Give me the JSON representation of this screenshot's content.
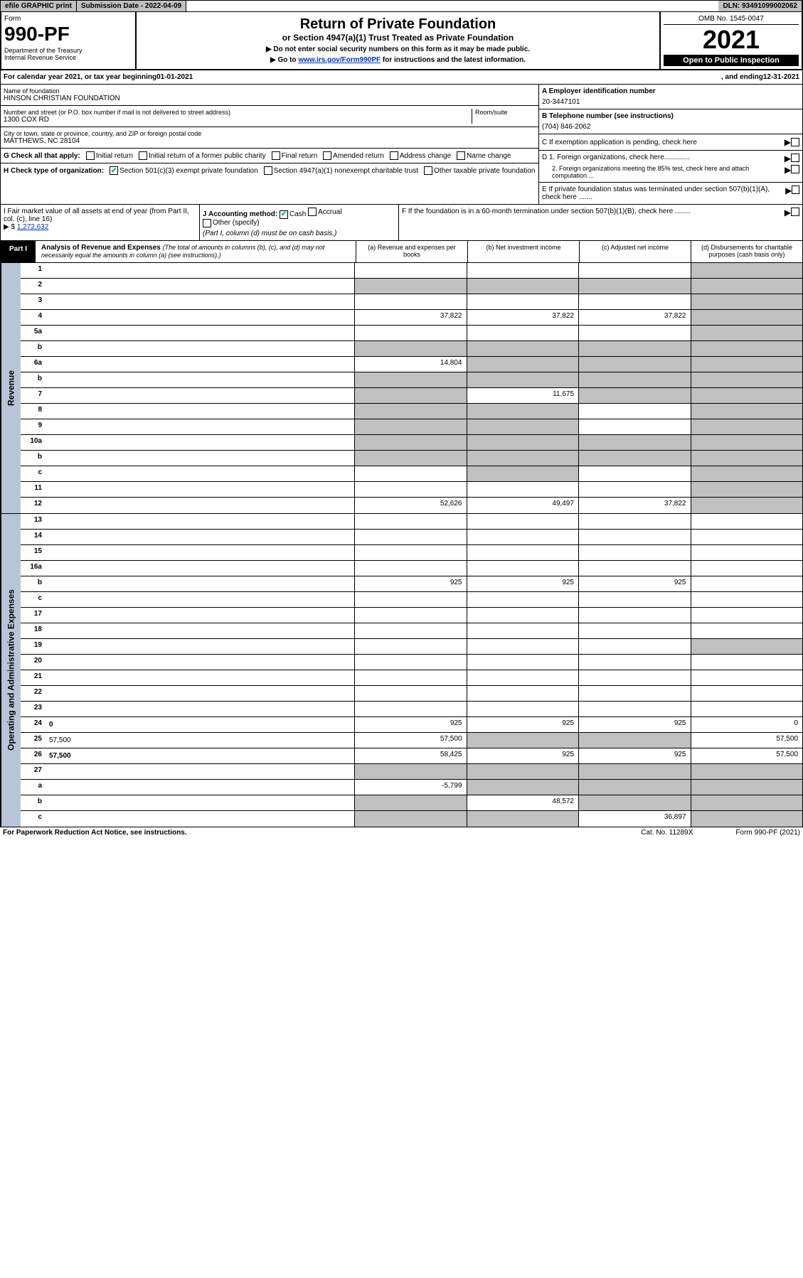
{
  "top": {
    "efile": "efile GRAPHIC print",
    "subdate_label": "Submission Date - ",
    "subdate": "2022-04-09",
    "dln_label": "DLN: ",
    "dln": "93491099002062"
  },
  "hdr": {
    "form_label": "Form",
    "form_no": "990-PF",
    "dept": "Department of the Treasury\nInternal Revenue Service",
    "title": "Return of Private Foundation",
    "subtitle": "or Section 4947(a)(1) Trust Treated as Private Foundation",
    "note1": "▶ Do not enter social security numbers on this form as it may be made public.",
    "note2_prefix": "▶ Go to ",
    "note2_link": "www.irs.gov/Form990PF",
    "note2_suffix": " for instructions and the latest information.",
    "omb": "OMB No. 1545-0047",
    "year": "2021",
    "open": "Open to Public Inspection"
  },
  "period": {
    "prefix": "For calendar year 2021, or tax year beginning ",
    "begin": "01-01-2021",
    "mid": " , and ending ",
    "end": "12-31-2021"
  },
  "meta": {
    "name_lbl": "Name of foundation",
    "name": "HINSON CHRISTIAN FOUNDATION",
    "addr_lbl": "Number and street (or P.O. box number if mail is not delivered to street address)",
    "addr": "1300 COX RD",
    "room_lbl": "Room/suite",
    "city_lbl": "City or town, state or province, country, and ZIP or foreign postal code",
    "city": "MATTHEWS, NC  28104",
    "ein_lbl": "A Employer identification number",
    "ein": "20-3447101",
    "tel_lbl": "B Telephone number (see instructions)",
    "tel": "(704) 846-2062",
    "c_lbl": "C If exemption application is pending, check here",
    "g_lbl": "G Check all that apply:",
    "g_opts": [
      "Initial return",
      "Initial return of a former public charity",
      "Final return",
      "Amended return",
      "Address change",
      "Name change"
    ],
    "h_lbl": "H Check type of organization:",
    "h_opts": [
      "Section 501(c)(3) exempt private foundation",
      "Section 4947(a)(1) nonexempt charitable trust",
      "Other taxable private foundation"
    ],
    "d1": "D 1. Foreign organizations, check here.............",
    "d2": "2. Foreign organizations meeting the 85% test, check here and attach computation ...",
    "e_lbl": "E  If private foundation status was terminated under section 507(b)(1)(A), check here .......",
    "i_lbl": "I Fair market value of all assets at end of year (from Part II, col. (c), line 16)",
    "i_val": "1,272,632",
    "j_lbl": "J Accounting method:",
    "j_opts": [
      "Cash",
      "Accrual",
      "Other (specify)"
    ],
    "j_note": "(Part I, column (d) must be on cash basis.)",
    "f_lbl": "F  If the foundation is in a 60-month termination under section 507(b)(1)(B), check here ........"
  },
  "part1": {
    "tag": "Part I",
    "title": "Analysis of Revenue and Expenses",
    "title_note": " (The total of amounts in columns (b), (c), and (d) may not necessarily equal the amounts in column (a) (see instructions).)",
    "cols": [
      "(a)  Revenue and expenses per books",
      "(b)  Net investment income",
      "(c)  Adjusted net income",
      "(d)  Disbursements for charitable purposes (cash basis only)"
    ]
  },
  "sections": {
    "revenue": "Revenue",
    "expenses": "Operating and Administrative Expenses"
  },
  "lines": [
    {
      "n": "1",
      "d": "",
      "a": "",
      "b": "",
      "c": "",
      "shade": [
        "d"
      ]
    },
    {
      "n": "2",
      "d": "",
      "a": "",
      "b": "",
      "c": "",
      "shade": [
        "a",
        "b",
        "c",
        "d"
      ]
    },
    {
      "n": "3",
      "d": "",
      "a": "",
      "b": "",
      "c": "",
      "shade": [
        "d"
      ]
    },
    {
      "n": "4",
      "d": "",
      "a": "37,822",
      "b": "37,822",
      "c": "37,822",
      "shade": [
        "d"
      ]
    },
    {
      "n": "5a",
      "d": "",
      "a": "",
      "b": "",
      "c": "",
      "shade": [
        "d"
      ]
    },
    {
      "n": "b",
      "d": "",
      "a": "",
      "b": "",
      "c": "",
      "shade": [
        "a",
        "b",
        "c",
        "d"
      ]
    },
    {
      "n": "6a",
      "d": "",
      "a": "14,804",
      "b": "",
      "c": "",
      "shade": [
        "b",
        "c",
        "d"
      ]
    },
    {
      "n": "b",
      "d": "",
      "a": "",
      "b": "",
      "c": "",
      "shade": [
        "a",
        "b",
        "c",
        "d"
      ]
    },
    {
      "n": "7",
      "d": "",
      "a": "",
      "b": "11,675",
      "c": "",
      "shade": [
        "a",
        "c",
        "d"
      ]
    },
    {
      "n": "8",
      "d": "",
      "a": "",
      "b": "",
      "c": "",
      "shade": [
        "a",
        "b",
        "d"
      ]
    },
    {
      "n": "9",
      "d": "",
      "a": "",
      "b": "",
      "c": "",
      "shade": [
        "a",
        "b",
        "d"
      ]
    },
    {
      "n": "10a",
      "d": "",
      "a": "",
      "b": "",
      "c": "",
      "shade": [
        "a",
        "b",
        "c",
        "d"
      ]
    },
    {
      "n": "b",
      "d": "",
      "a": "",
      "b": "",
      "c": "",
      "shade": [
        "a",
        "b",
        "c",
        "d"
      ]
    },
    {
      "n": "c",
      "d": "",
      "a": "",
      "b": "",
      "c": "",
      "shade": [
        "b",
        "d"
      ]
    },
    {
      "n": "11",
      "d": "",
      "a": "",
      "b": "",
      "c": "",
      "shade": [
        "d"
      ]
    },
    {
      "n": "12",
      "d": "",
      "a": "52,626",
      "b": "49,497",
      "c": "37,822",
      "bold": true,
      "shade": [
        "d"
      ]
    }
  ],
  "explines": [
    {
      "n": "13",
      "d": "",
      "a": "",
      "b": "",
      "c": ""
    },
    {
      "n": "14",
      "d": "",
      "a": "",
      "b": "",
      "c": ""
    },
    {
      "n": "15",
      "d": "",
      "a": "",
      "b": "",
      "c": ""
    },
    {
      "n": "16a",
      "d": "",
      "a": "",
      "b": "",
      "c": ""
    },
    {
      "n": "b",
      "d": "",
      "a": "925",
      "b": "925",
      "c": "925"
    },
    {
      "n": "c",
      "d": "",
      "a": "",
      "b": "",
      "c": ""
    },
    {
      "n": "17",
      "d": "",
      "a": "",
      "b": "",
      "c": ""
    },
    {
      "n": "18",
      "d": "",
      "a": "",
      "b": "",
      "c": ""
    },
    {
      "n": "19",
      "d": "",
      "a": "",
      "b": "",
      "c": "",
      "shade": [
        "d"
      ]
    },
    {
      "n": "20",
      "d": "",
      "a": "",
      "b": "",
      "c": ""
    },
    {
      "n": "21",
      "d": "",
      "a": "",
      "b": "",
      "c": ""
    },
    {
      "n": "22",
      "d": "",
      "a": "",
      "b": "",
      "c": ""
    },
    {
      "n": "23",
      "d": "",
      "a": "",
      "b": "",
      "c": ""
    },
    {
      "n": "24",
      "d": "0",
      "a": "925",
      "b": "925",
      "c": "925",
      "bold": true
    },
    {
      "n": "25",
      "d": "57,500",
      "a": "57,500",
      "b": "",
      "c": "",
      "shade": [
        "b",
        "c"
      ]
    },
    {
      "n": "26",
      "d": "57,500",
      "a": "58,425",
      "b": "925",
      "c": "925",
      "bold": true
    },
    {
      "n": "27",
      "d": "",
      "a": "",
      "b": "",
      "c": "",
      "shade": [
        "a",
        "b",
        "c",
        "d"
      ]
    },
    {
      "n": "a",
      "d": "",
      "a": "-5,799",
      "b": "",
      "c": "",
      "bold": true,
      "shade": [
        "b",
        "c",
        "d"
      ]
    },
    {
      "n": "b",
      "d": "",
      "a": "",
      "b": "48,572",
      "c": "",
      "bold": true,
      "shade": [
        "a",
        "c",
        "d"
      ]
    },
    {
      "n": "c",
      "d": "",
      "a": "",
      "b": "",
      "c": "36,897",
      "bold": true,
      "shade": [
        "a",
        "b",
        "d"
      ]
    }
  ],
  "footer": {
    "left": "For Paperwork Reduction Act Notice, see instructions.",
    "mid": "Cat. No. 11289X",
    "right": "Form 990-PF (2021)"
  }
}
